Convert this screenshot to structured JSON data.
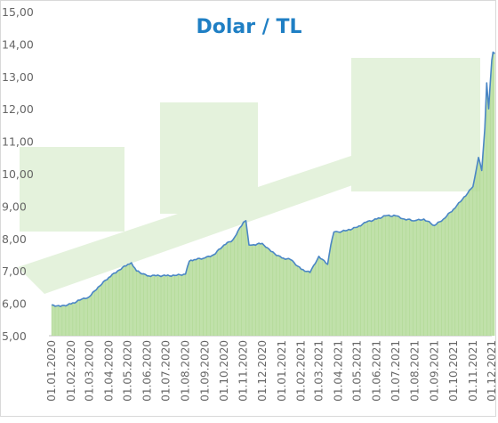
{
  "chart_data": {
    "type": "area",
    "title": "Dolar / TL",
    "xlabel": "",
    "ylabel": "",
    "ylim": [
      5,
      15
    ],
    "yticks": [
      "5,00",
      "6,00",
      "7,00",
      "8,00",
      "9,00",
      "10,00",
      "11,00",
      "12,00",
      "13,00",
      "14,00",
      "15,00"
    ],
    "xticks": [
      "01.01.2020",
      "01.02.2020",
      "01.03.2020",
      "01.04.2020",
      "01.05.2020",
      "01.06.2020",
      "01.07.2020",
      "01.08.2020",
      "01.09.2020",
      "01.10.2020",
      "01.11.2020",
      "01.12.2020",
      "01.01.2021",
      "01.02.2021",
      "01.03.2021",
      "01.04.2021",
      "01.05.2021",
      "01.06.2021",
      "01.07.2021",
      "01.08.2021",
      "01.09.2021",
      "01.10.2021",
      "01.11.2021",
      "01.12.2021"
    ],
    "grid": false,
    "legend": "none",
    "colors": {
      "line": "#4a86c5",
      "fill": "#b5dc9b",
      "title": "#1f7fc4",
      "axis_text": "#666666",
      "watermark": "#e4f2dc"
    },
    "series": [
      {
        "dates": [
          "01.01.2020",
          "15.01.2020",
          "01.02.2020",
          "15.02.2020",
          "01.03.2020",
          "15.03.2020",
          "01.04.2020",
          "15.04.2020",
          "01.05.2020",
          "07.05.2020",
          "15.05.2020",
          "01.06.2020",
          "15.06.2020",
          "01.07.2020",
          "15.07.2020",
          "01.08.2020",
          "07.08.2020",
          "15.08.2020",
          "01.09.2020",
          "15.09.2020",
          "01.10.2020",
          "15.10.2020",
          "01.11.2020",
          "05.11.2020",
          "10.11.2020",
          "15.11.2020",
          "01.12.2020",
          "15.12.2020",
          "01.01.2021",
          "15.01.2021",
          "01.02.2021",
          "15.02.2021",
          "01.03.2021",
          "15.03.2021",
          "20.03.2021",
          "25.03.2021",
          "01.04.2021",
          "15.04.2021",
          "01.05.2021",
          "15.05.2021",
          "01.06.2021",
          "15.06.2021",
          "01.07.2021",
          "15.07.2021",
          "01.08.2021",
          "15.08.2021",
          "01.09.2021",
          "15.09.2021",
          "01.10.2021",
          "15.10.2021",
          "01.11.2021",
          "10.11.2021",
          "15.11.2021",
          "20.11.2021",
          "23.11.2021",
          "26.11.2021",
          "01.12.2021",
          "03.12.2021",
          "06.12.2021"
        ],
        "values": [
          5.95,
          5.9,
          5.98,
          6.1,
          6.2,
          6.5,
          6.8,
          7.0,
          7.2,
          7.25,
          7.0,
          6.85,
          6.85,
          6.85,
          6.86,
          6.9,
          7.3,
          7.35,
          7.4,
          7.5,
          7.8,
          7.95,
          8.5,
          8.55,
          7.8,
          7.8,
          7.85,
          7.6,
          7.4,
          7.35,
          7.05,
          6.95,
          7.45,
          7.2,
          7.8,
          8.2,
          8.2,
          8.25,
          8.35,
          8.5,
          8.6,
          8.7,
          8.7,
          8.6,
          8.55,
          8.6,
          8.4,
          8.6,
          8.9,
          9.2,
          9.6,
          10.5,
          10.1,
          11.4,
          12.8,
          12.0,
          13.5,
          13.75,
          13.7
        ]
      }
    ]
  }
}
